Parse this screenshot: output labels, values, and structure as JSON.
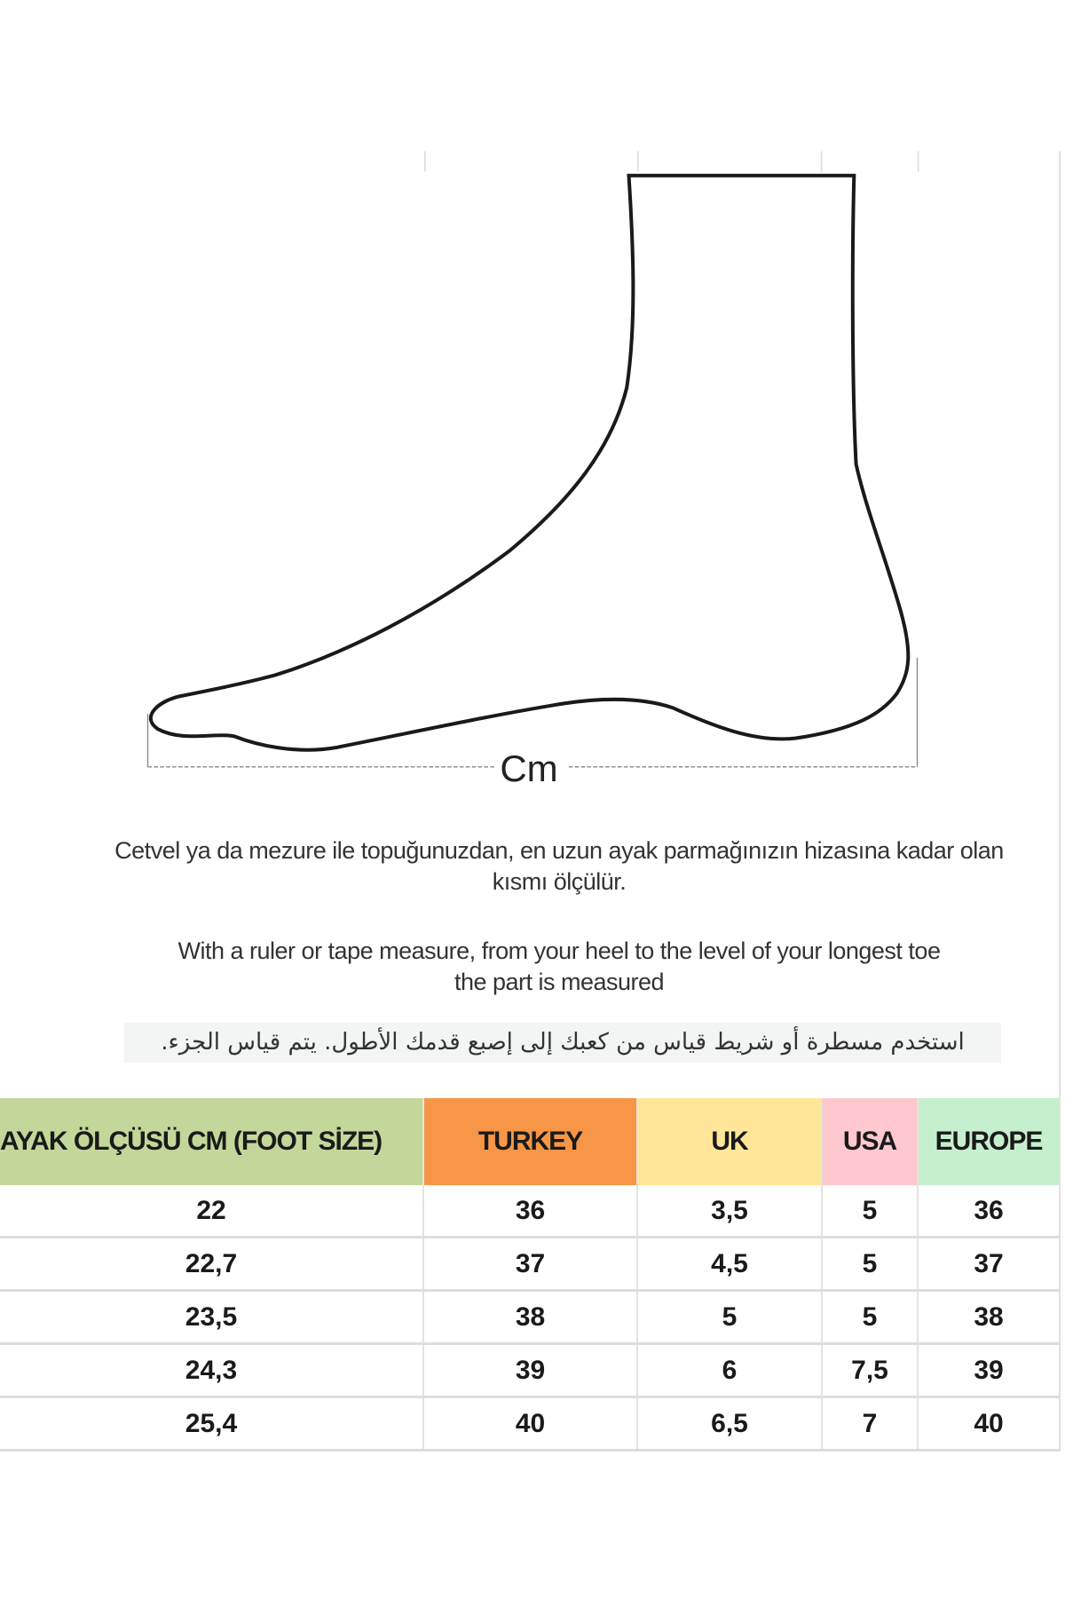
{
  "diagram": {
    "measure_label": "Cm"
  },
  "instructions": {
    "turkish": "Cetvel ya da mezure ile topuğunuzdan, en uzun ayak parmağınızın hizasına kadar olan kısmı ölçülür.",
    "english_line1": "With a ruler or tape measure, from your heel to the level of your longest toe",
    "english_line2": "the part is measured",
    "arabic": "استخدم مسطرة أو شريط قياس من كعبك إلى إصبع قدمك الأطول.  يتم قياس الجزء."
  },
  "table": {
    "headers": [
      "AYAK ÖLÇÜSÜ CM (FOOT SİZE)",
      "TURKEY",
      "UK",
      "USA",
      "EUROPE"
    ],
    "header_colors": [
      "#c4d79b",
      "#f79646",
      "#ffe699",
      "#ffc7ce",
      "#c6efce"
    ],
    "rows": [
      [
        "22",
        "36",
        "3,5",
        "5",
        "36"
      ],
      [
        "22,7",
        "37",
        "4,5",
        "5",
        "37"
      ],
      [
        "23,5",
        "38",
        "5",
        "5",
        "38"
      ],
      [
        "24,3",
        "39",
        "6",
        "7,5",
        "39"
      ],
      [
        "25,4",
        "40",
        "6,5",
        "7",
        "40"
      ]
    ]
  }
}
